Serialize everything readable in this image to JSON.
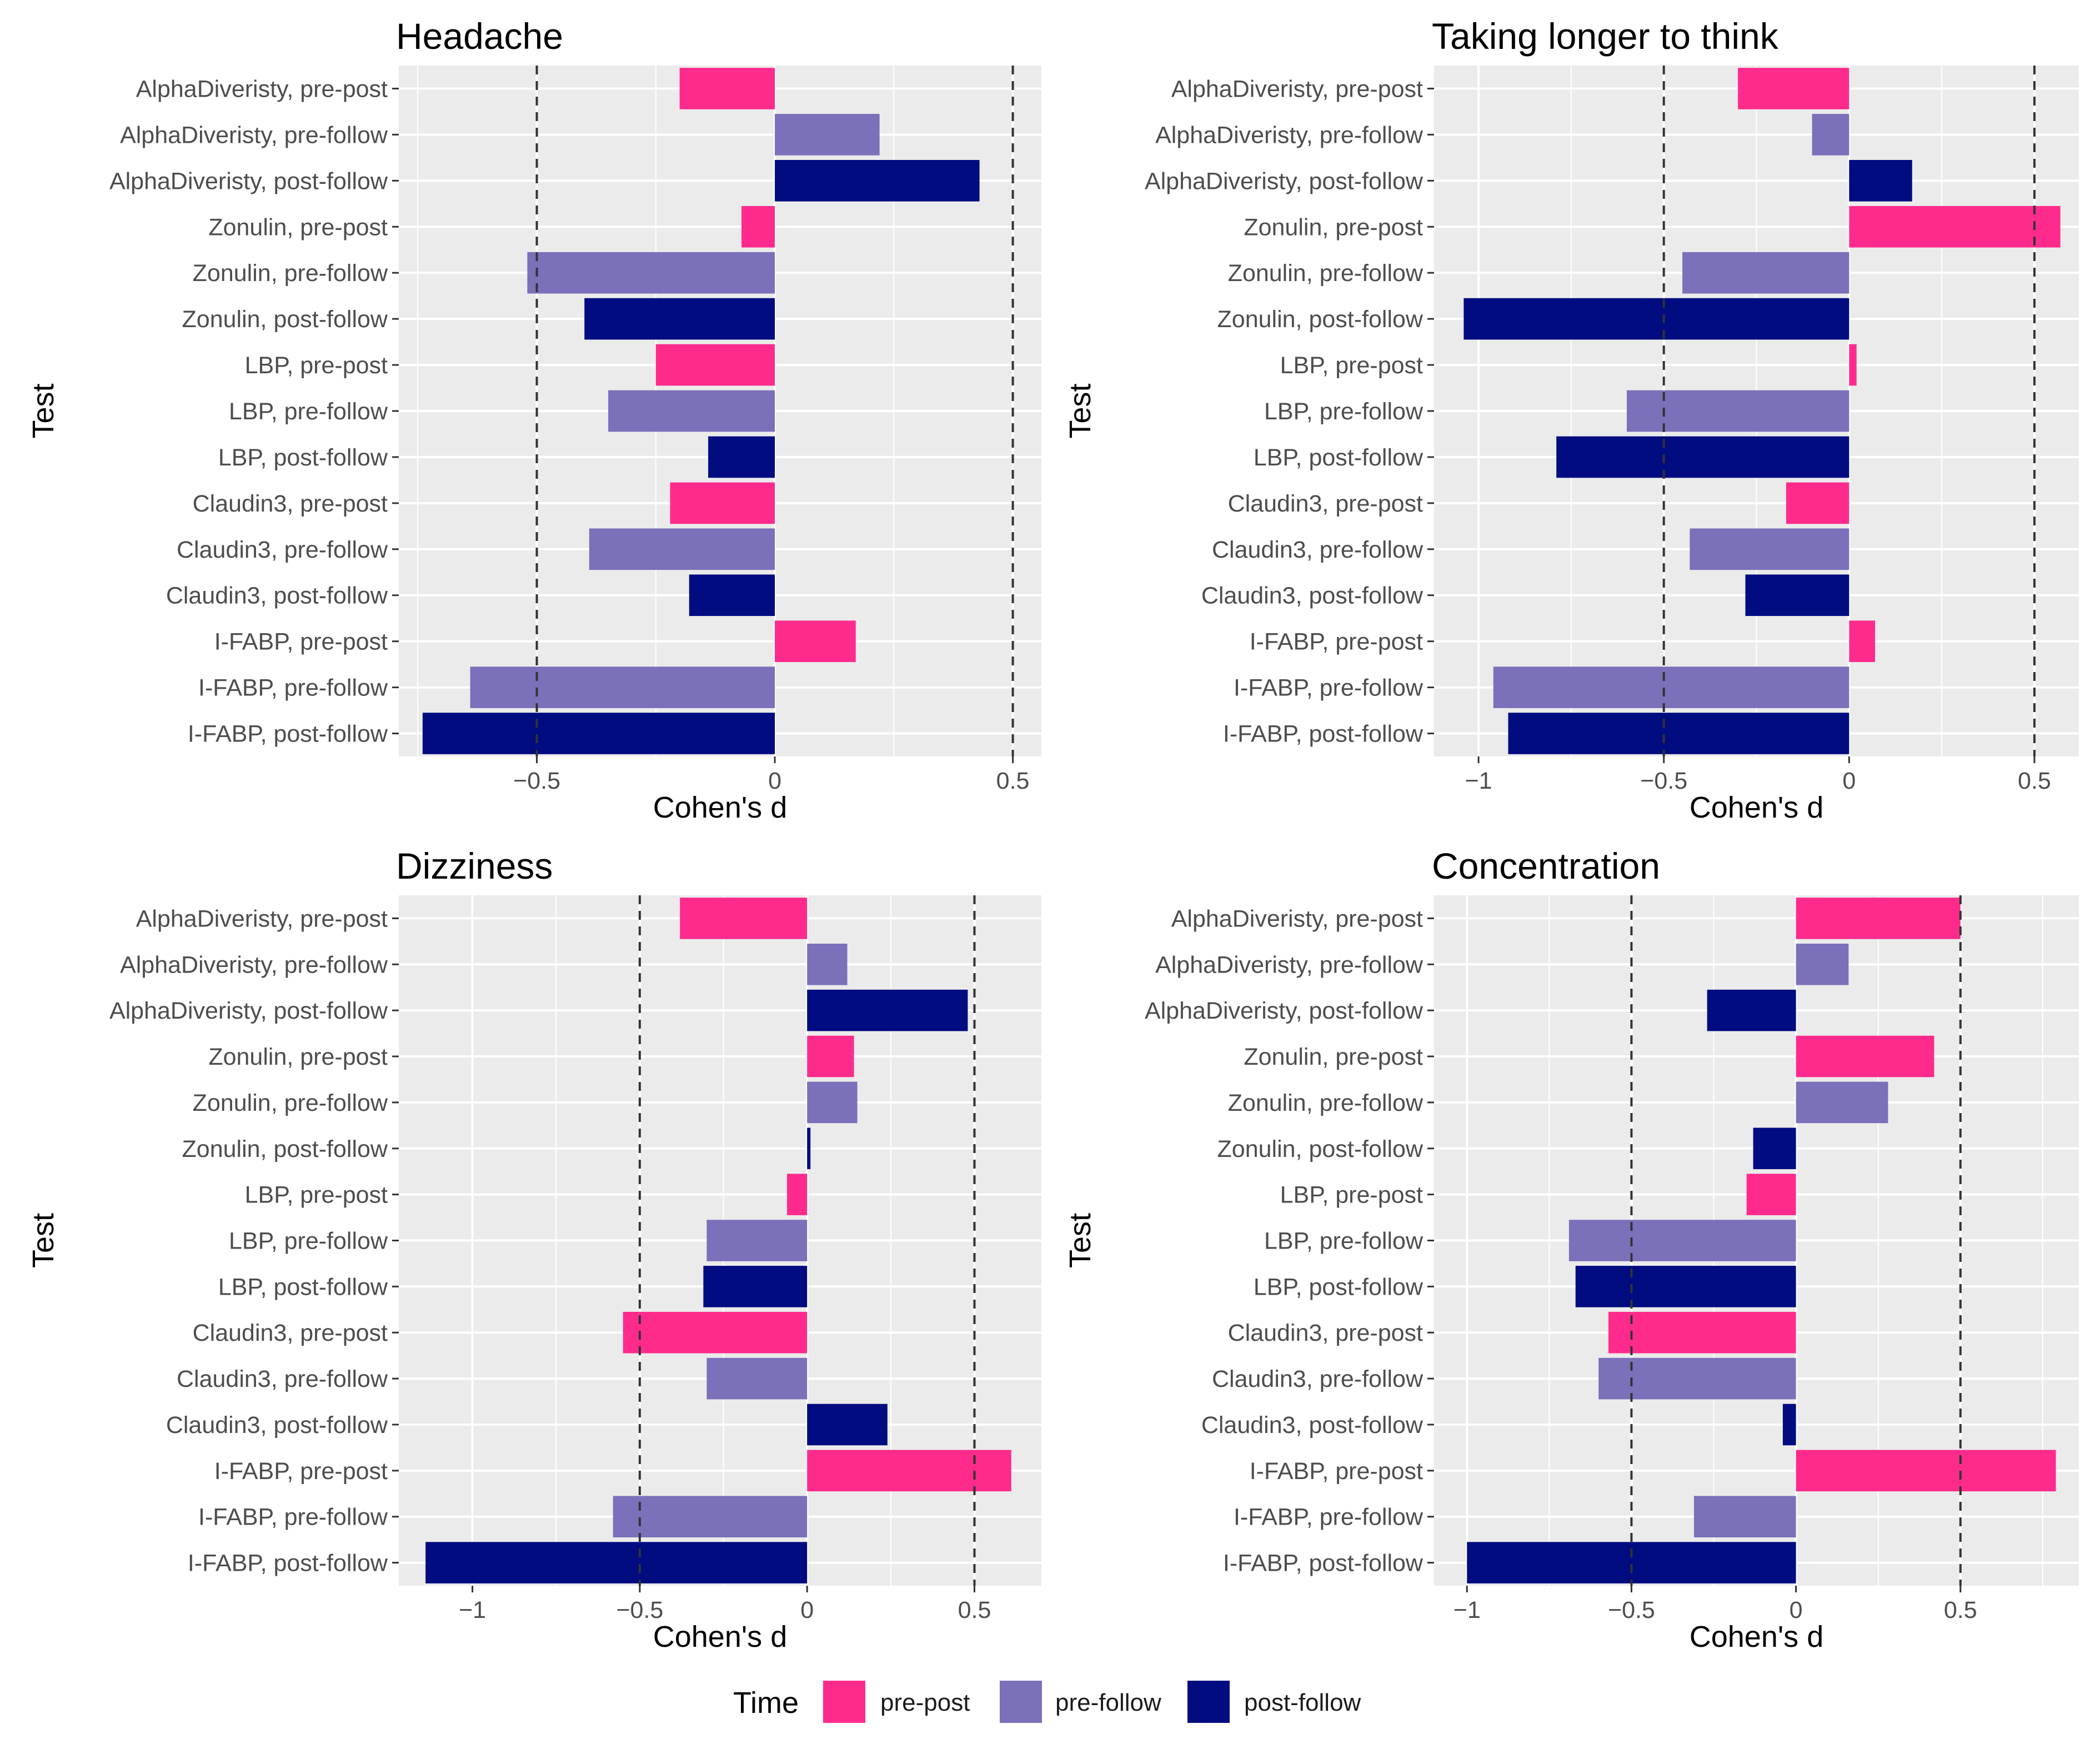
{
  "chart_data": [
    {
      "type": "bar",
      "orientation": "horizontal",
      "title": "Headache",
      "xlabel": "Cohen's d",
      "ylabel": "Test",
      "xlim": [
        -0.79,
        0.56
      ],
      "xticks": [
        -0.5,
        0,
        0.5
      ],
      "xtick_labels": [
        "−0.5",
        "0",
        "0.5"
      ],
      "reference_lines": [
        -0.5,
        0.5
      ],
      "categories": [
        "AlphaDiveristy, pre-post",
        "AlphaDiveristy, pre-follow",
        "AlphaDiveristy, post-follow",
        "Zonulin, pre-post",
        "Zonulin, pre-follow",
        "Zonulin, post-follow",
        "LBP, pre-post",
        "LBP, pre-follow",
        "LBP, post-follow",
        "Claudin3, pre-post",
        "Claudin3, pre-follow",
        "Claudin3, post-follow",
        "I-FABP, pre-post",
        "I-FABP, pre-follow",
        "I-FABP, post-follow"
      ],
      "time": [
        "pre-post",
        "pre-follow",
        "post-follow",
        "pre-post",
        "pre-follow",
        "post-follow",
        "pre-post",
        "pre-follow",
        "post-follow",
        "pre-post",
        "pre-follow",
        "post-follow",
        "pre-post",
        "pre-follow",
        "post-follow"
      ],
      "values": [
        -0.2,
        0.22,
        0.43,
        -0.07,
        -0.52,
        -0.4,
        -0.25,
        -0.35,
        -0.14,
        -0.22,
        -0.39,
        -0.18,
        0.17,
        -0.64,
        -0.74
      ]
    },
    {
      "type": "bar",
      "orientation": "horizontal",
      "title": "Taking longer to think",
      "xlabel": "Cohen's d",
      "ylabel": "Test",
      "xlim": [
        -1.12,
        0.62
      ],
      "xticks": [
        -1,
        -0.5,
        0,
        0.5
      ],
      "xtick_labels": [
        "−1",
        "−0.5",
        "0",
        "0.5"
      ],
      "reference_lines": [
        -0.5,
        0.5
      ],
      "categories": [
        "AlphaDiveristy, pre-post",
        "AlphaDiveristy, pre-follow",
        "AlphaDiveristy, post-follow",
        "Zonulin, pre-post",
        "Zonulin, pre-follow",
        "Zonulin, post-follow",
        "LBP, pre-post",
        "LBP, pre-follow",
        "LBP, post-follow",
        "Claudin3, pre-post",
        "Claudin3, pre-follow",
        "Claudin3, post-follow",
        "I-FABP, pre-post",
        "I-FABP, pre-follow",
        "I-FABP, post-follow"
      ],
      "time": [
        "pre-post",
        "pre-follow",
        "post-follow",
        "pre-post",
        "pre-follow",
        "post-follow",
        "pre-post",
        "pre-follow",
        "post-follow",
        "pre-post",
        "pre-follow",
        "post-follow",
        "pre-post",
        "pre-follow",
        "post-follow"
      ],
      "values": [
        -0.3,
        -0.1,
        0.17,
        0.57,
        -0.45,
        -1.04,
        0.02,
        -0.6,
        -0.79,
        -0.17,
        -0.43,
        -0.28,
        0.07,
        -0.96,
        -0.92
      ]
    },
    {
      "type": "bar",
      "orientation": "horizontal",
      "title": "Dizziness",
      "xlabel": "Cohen's d",
      "ylabel": "Test",
      "xlim": [
        -1.22,
        0.7
      ],
      "xticks": [
        -1,
        -0.5,
        0,
        0.5
      ],
      "xtick_labels": [
        "−1",
        "−0.5",
        "0",
        "0.5"
      ],
      "reference_lines": [
        -0.5,
        0.5
      ],
      "categories": [
        "AlphaDiveristy, pre-post",
        "AlphaDiveristy, pre-follow",
        "AlphaDiveristy, post-follow",
        "Zonulin, pre-post",
        "Zonulin, pre-follow",
        "Zonulin, post-follow",
        "LBP, pre-post",
        "LBP, pre-follow",
        "LBP, post-follow",
        "Claudin3, pre-post",
        "Claudin3, pre-follow",
        "Claudin3, post-follow",
        "I-FABP, pre-post",
        "I-FABP, pre-follow",
        "I-FABP, post-follow"
      ],
      "time": [
        "pre-post",
        "pre-follow",
        "post-follow",
        "pre-post",
        "pre-follow",
        "post-follow",
        "pre-post",
        "pre-follow",
        "post-follow",
        "pre-post",
        "pre-follow",
        "post-follow",
        "pre-post",
        "pre-follow",
        "post-follow"
      ],
      "values": [
        -0.38,
        0.12,
        0.48,
        0.14,
        0.15,
        0.01,
        -0.06,
        -0.3,
        -0.31,
        -0.55,
        -0.3,
        0.24,
        0.61,
        -0.58,
        -1.14
      ]
    },
    {
      "type": "bar",
      "orientation": "horizontal",
      "title": "Concentration",
      "xlabel": "Cohen's d",
      "ylabel": "Test",
      "xlim": [
        -1.1,
        0.86
      ],
      "xticks": [
        -1,
        -0.5,
        0,
        0.5
      ],
      "xtick_labels": [
        "−1",
        "−0.5",
        "0",
        "0.5"
      ],
      "reference_lines": [
        -0.5,
        0.5
      ],
      "categories": [
        "AlphaDiveristy, pre-post",
        "AlphaDiveristy, pre-follow",
        "AlphaDiveristy, post-follow",
        "Zonulin, pre-post",
        "Zonulin, pre-follow",
        "Zonulin, post-follow",
        "LBP, pre-post",
        "LBP, pre-follow",
        "LBP, post-follow",
        "Claudin3, pre-post",
        "Claudin3, pre-follow",
        "Claudin3, post-follow",
        "I-FABP, pre-post",
        "I-FABP, pre-follow",
        "I-FABP, post-follow"
      ],
      "time": [
        "pre-post",
        "pre-follow",
        "post-follow",
        "pre-post",
        "pre-follow",
        "post-follow",
        "pre-post",
        "pre-follow",
        "post-follow",
        "pre-post",
        "pre-follow",
        "post-follow",
        "pre-post",
        "pre-follow",
        "post-follow"
      ],
      "values": [
        0.5,
        0.16,
        -0.27,
        0.42,
        0.28,
        -0.13,
        -0.15,
        -0.69,
        -0.67,
        -0.57,
        -0.6,
        -0.04,
        0.79,
        -0.31,
        -1.0
      ]
    }
  ],
  "legend": {
    "title": "Time",
    "items": [
      {
        "label": "pre-post",
        "color": "#FF2B8C"
      },
      {
        "label": "pre-follow",
        "color": "#7B70BA"
      },
      {
        "label": "post-follow",
        "color": "#000C80"
      }
    ]
  },
  "colors": {
    "pre-post": "#FF2B8C",
    "pre-follow": "#7B70BA",
    "post-follow": "#000C80",
    "panel_background": "#EBEBEB",
    "grid": "#FFFFFF",
    "reference_line": "#333333"
  }
}
